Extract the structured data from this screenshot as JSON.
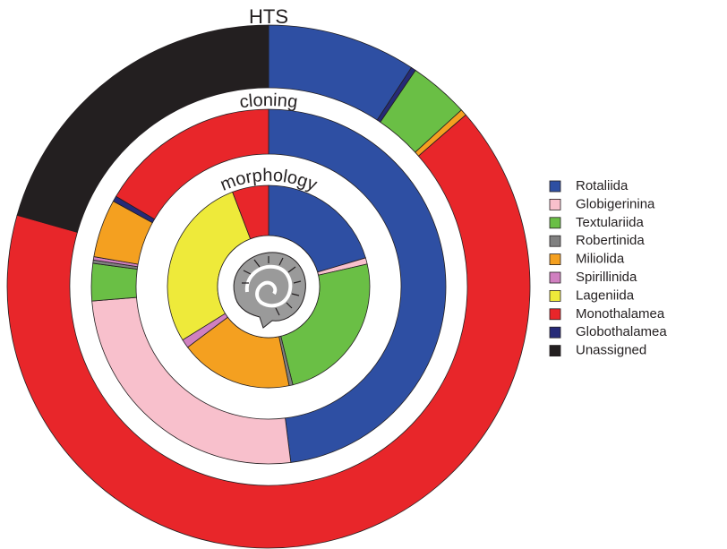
{
  "chart_data": {
    "type": "donut",
    "legend": [
      {
        "name": "Rotaliida",
        "color": "#2e4fa3"
      },
      {
        "name": "Globigerinina",
        "color": "#f8c0cc"
      },
      {
        "name": "Textulariida",
        "color": "#6abf45"
      },
      {
        "name": "Robertinida",
        "color": "#808080"
      },
      {
        "name": "Miliolida",
        "color": "#f4a020"
      },
      {
        "name": "Spirillinida",
        "color": "#d080c0"
      },
      {
        "name": "Lageniida",
        "color": "#eeea3a"
      },
      {
        "name": "Monothalamea",
        "color": "#e8262a"
      },
      {
        "name": "Globothalamea",
        "color": "#262a78"
      },
      {
        "name": "Unassigned",
        "color": "#231f20"
      }
    ],
    "series": [
      {
        "name": "HTS",
        "categories": [
          "Rotaliida",
          "Globothalamea",
          "Textulariida",
          "Miliolida",
          "Monothalamea",
          "Unassigned"
        ],
        "values": [
          9.2,
          0.3,
          3.7,
          0.4,
          65.8,
          20.6
        ]
      },
      {
        "name": "cloning",
        "categories": [
          "Rotaliida",
          "Globigerinina",
          "Textulariida",
          "Robertinida",
          "Spirillinida",
          "Miliolida",
          "Globothalamea",
          "Monothalamea"
        ],
        "values": [
          48,
          25.7,
          3.4,
          0.3,
          0.3,
          5.3,
          0.5,
          16.5
        ]
      },
      {
        "name": "morphology",
        "categories": [
          "Rotaliida",
          "Globigerinina",
          "Textulariida",
          "Robertinida",
          "Miliolida",
          "Spirillinida",
          "Lageniida",
          "Monothalamea"
        ],
        "values": [
          20.4,
          1,
          24.7,
          0.6,
          18,
          1.4,
          28,
          5.8
        ]
      }
    ]
  }
}
